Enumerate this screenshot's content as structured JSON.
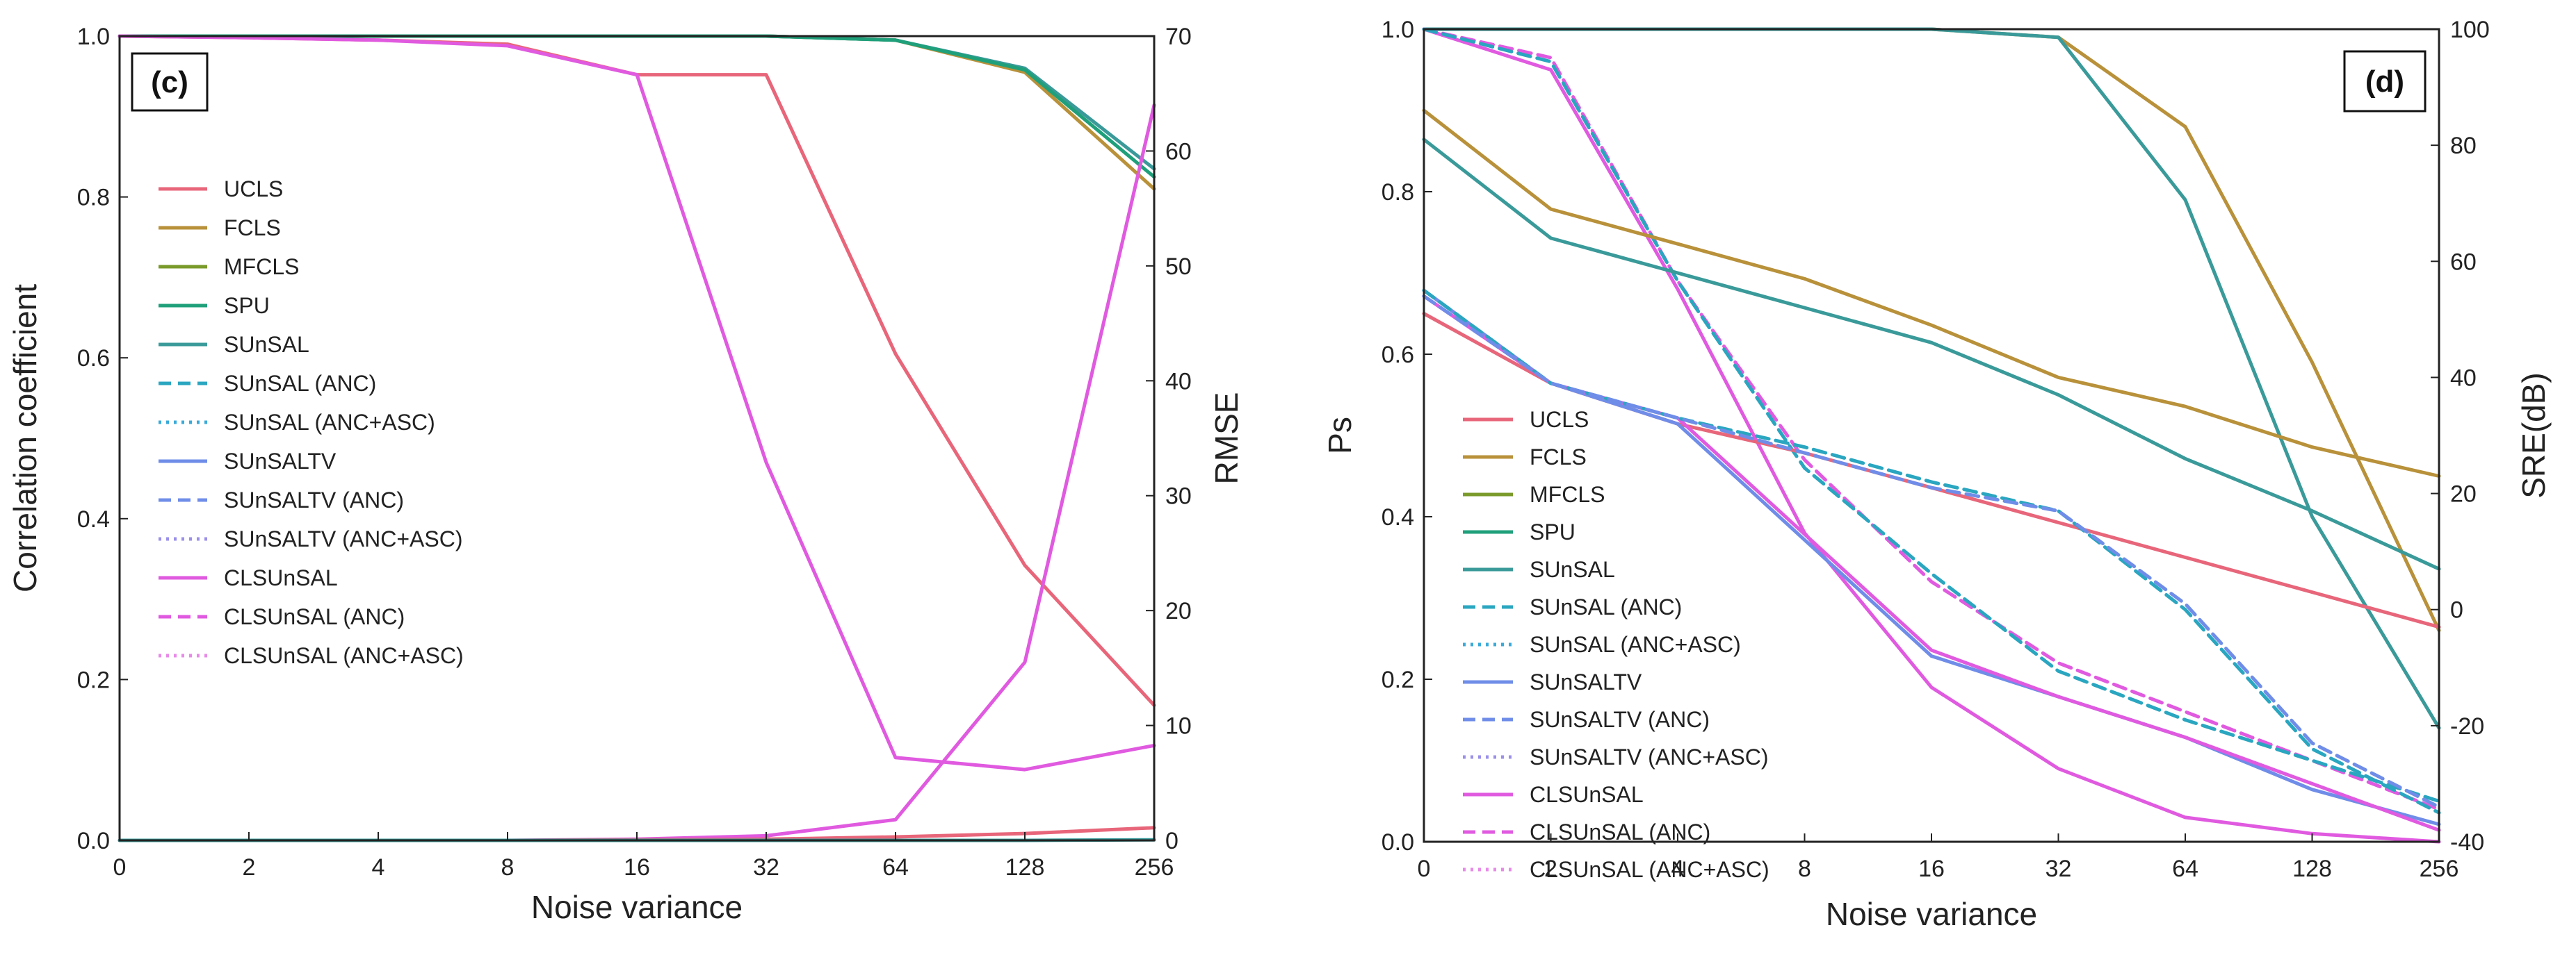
{
  "chart_data": [
    {
      "type": "line",
      "panel_label": "(c)",
      "xlabel": "Noise variance",
      "ylabel": "Correlation coefficient",
      "y2label": "RMSE",
      "x_tick_labels": [
        "0",
        "2",
        "4",
        "8",
        "16",
        "32",
        "64",
        "128",
        "256"
      ],
      "ylim": [
        0,
        1
      ],
      "y_ticks": [
        "0.0",
        "0.2",
        "0.4",
        "0.6",
        "0.8",
        "1.0"
      ],
      "y2lim": [
        0,
        70
      ],
      "y2_ticks": [
        "0",
        "10",
        "20",
        "30",
        "40",
        "50",
        "60",
        "70"
      ],
      "legend_position": "center-left",
      "legend": [
        {
          "name": "UCLS",
          "color": "#e8667a",
          "style": "solid"
        },
        {
          "name": "FCLS",
          "color": "#b8913a",
          "style": "solid"
        },
        {
          "name": "MFCLS",
          "color": "#7a9a2a",
          "style": "solid"
        },
        {
          "name": "SPU",
          "color": "#1fa07a",
          "style": "solid"
        },
        {
          "name": "SUnSAL",
          "color": "#3a9a9a",
          "style": "solid"
        },
        {
          "name": "SUnSAL (ANC)",
          "color": "#2aa6c0",
          "style": "dashed"
        },
        {
          "name": "SUnSAL (ANC+ASC)",
          "color": "#3aaad8",
          "style": "dotted"
        },
        {
          "name": "SUnSALTV",
          "color": "#6f8de8",
          "style": "solid"
        },
        {
          "name": "SUnSALTV (ANC)",
          "color": "#6f8de8",
          "style": "dashed"
        },
        {
          "name": "SUnSALTV (ANC+ASC)",
          "color": "#9a90e8",
          "style": "dotted"
        },
        {
          "name": "CLSUnSAL",
          "color": "#e05ae0",
          "style": "solid"
        },
        {
          "name": "CLSUnSAL (ANC)",
          "color": "#e05ae0",
          "style": "dashed"
        },
        {
          "name": "CLSUnSAL (ANC+ASC)",
          "color": "#e88ae8",
          "style": "dotted"
        }
      ],
      "series": [
        {
          "name": "UCLS corr",
          "axis": "left",
          "color": "#e8667a",
          "style": "solid",
          "values": [
            1.0,
            0.998,
            0.995,
            0.99,
            0.952,
            0.952,
            0.605,
            0.342,
            0.168
          ]
        },
        {
          "name": "FCLS corr",
          "axis": "left",
          "color": "#b8913a",
          "style": "solid",
          "values": [
            1.0,
            1.0,
            1.0,
            1.0,
            1.0,
            1.0,
            0.995,
            0.955,
            0.81
          ]
        },
        {
          "name": "SUnSAL corr",
          "axis": "left",
          "color": "#3a9a9a",
          "style": "solid",
          "values": [
            1.0,
            1.0,
            1.0,
            1.0,
            1.0,
            1.0,
            0.995,
            0.96,
            0.835
          ]
        },
        {
          "name": "SPU corr",
          "axis": "left",
          "color": "#1fa07a",
          "style": "solid",
          "values": [
            1.0,
            1.0,
            1.0,
            1.0,
            1.0,
            1.0,
            0.995,
            0.958,
            0.825
          ]
        },
        {
          "name": "CLSUnSAL corr",
          "axis": "left",
          "color": "#e05ae0",
          "style": "solid",
          "values": [
            1.0,
            0.998,
            0.995,
            0.988,
            0.952,
            0.47,
            0.103,
            0.088,
            0.118
          ]
        },
        {
          "name": "CLSUnSAL RMSE",
          "axis": "right",
          "color": "#e05ae0",
          "style": "solid",
          "values": [
            0,
            0,
            0,
            0,
            0.1,
            0.4,
            1.8,
            15.5,
            64
          ]
        },
        {
          "name": "UCLS RMSE",
          "axis": "right",
          "color": "#e8667a",
          "style": "solid",
          "values": [
            0,
            0,
            0,
            0,
            0.05,
            0.1,
            0.3,
            0.6,
            1.1
          ]
        },
        {
          "name": "SUnSAL RMSE",
          "axis": "right",
          "color": "#3a9a9a",
          "style": "solid",
          "values": [
            0,
            0,
            0,
            0,
            0,
            0,
            0,
            0,
            0.05
          ]
        }
      ]
    },
    {
      "type": "line",
      "panel_label": "(d)",
      "xlabel": "Noise variance",
      "ylabel": "Ps",
      "y2label": "SRE(dB)",
      "x_tick_labels": [
        "0",
        "2",
        "4",
        "8",
        "16",
        "32",
        "64",
        "128",
        "256"
      ],
      "ylim": [
        0,
        1
      ],
      "y_ticks": [
        "0.0",
        "0.2",
        "0.4",
        "0.6",
        "0.8",
        "1.0"
      ],
      "y2lim": [
        -40,
        100
      ],
      "y2_ticks": [
        "-40",
        "-20",
        "0",
        "20",
        "40",
        "60",
        "80",
        "100"
      ],
      "legend_position": "lower-left",
      "legend": [
        {
          "name": "UCLS",
          "color": "#e8667a",
          "style": "solid"
        },
        {
          "name": "FCLS",
          "color": "#b8913a",
          "style": "solid"
        },
        {
          "name": "MFCLS",
          "color": "#7a9a2a",
          "style": "solid"
        },
        {
          "name": "SPU",
          "color": "#1fa07a",
          "style": "solid"
        },
        {
          "name": "SUnSAL",
          "color": "#3a9a9a",
          "style": "solid"
        },
        {
          "name": "SUnSAL (ANC)",
          "color": "#2aa6c0",
          "style": "dashed"
        },
        {
          "name": "SUnSAL (ANC+ASC)",
          "color": "#3aaad8",
          "style": "dotted"
        },
        {
          "name": "SUnSALTV",
          "color": "#6f8de8",
          "style": "solid"
        },
        {
          "name": "SUnSALTV (ANC)",
          "color": "#6f8de8",
          "style": "dashed"
        },
        {
          "name": "SUnSALTV (ANC+ASC)",
          "color": "#9a90e8",
          "style": "dotted"
        },
        {
          "name": "CLSUnSAL",
          "color": "#e05ae0",
          "style": "solid"
        },
        {
          "name": "CLSUnSAL (ANC)",
          "color": "#e05ae0",
          "style": "dashed"
        },
        {
          "name": "CLSUnSAL (ANC+ASC)",
          "color": "#e88ae8",
          "style": "dotted"
        }
      ],
      "series": [
        {
          "name": "FCLS Ps",
          "axis": "left",
          "color": "#b8913a",
          "style": "solid",
          "values": [
            1.0,
            1.0,
            1.0,
            1.0,
            1.0,
            0.99,
            0.88,
            0.59,
            0.26
          ]
        },
        {
          "name": "SUnSAL Ps",
          "axis": "left",
          "color": "#3a9a9a",
          "style": "solid",
          "values": [
            1.0,
            1.0,
            1.0,
            1.0,
            1.0,
            0.99,
            0.79,
            0.4,
            0.14
          ]
        },
        {
          "name": "CLSUnSAL Ps",
          "axis": "left",
          "color": "#e05ae0",
          "style": "solid",
          "values": [
            1.0,
            0.95,
            0.68,
            0.38,
            0.19,
            0.09,
            0.03,
            0.01,
            0.0
          ]
        },
        {
          "name": "CLSUnSAL (ANC) Ps",
          "axis": "left",
          "color": "#e05ae0",
          "style": "dashed",
          "values": [
            1.0,
            0.965,
            0.69,
            0.47,
            0.32,
            0.22,
            0.16,
            0.1,
            0.04
          ]
        },
        {
          "name": "SUnSAL (ANC) Ps",
          "axis": "left",
          "color": "#2aa6c0",
          "style": "dashed",
          "values": [
            1.0,
            0.96,
            0.69,
            0.46,
            0.33,
            0.21,
            0.15,
            0.1,
            0.05
          ]
        },
        {
          "name": "FCLS SRE",
          "axis": "right",
          "color": "#b8913a",
          "style": "solid",
          "values": [
            86,
            69,
            63,
            57,
            49,
            40,
            35,
            28,
            23
          ]
        },
        {
          "name": "SUnSAL SRE",
          "axis": "right",
          "color": "#3a9a9a",
          "style": "solid",
          "values": [
            81,
            64,
            58,
            52,
            46,
            37,
            26,
            17,
            7
          ]
        },
        {
          "name": "UCLS SRE",
          "axis": "right",
          "color": "#e8667a",
          "style": "solid",
          "values": [
            51,
            39,
            32,
            27,
            21,
            15,
            9,
            3,
            -3
          ]
        },
        {
          "name": "SUnSALTV SRE",
          "axis": "right",
          "color": "#6f8de8",
          "style": "solid",
          "values": [
            55,
            39,
            32,
            12,
            -8,
            -15,
            -22,
            -31,
            -37
          ]
        },
        {
          "name": "CLSUnSAL SRE",
          "axis": "right",
          "color": "#e05ae0",
          "style": "solid",
          "values": [
            54,
            39,
            33,
            13,
            -7,
            -15,
            -22,
            -30,
            -38
          ]
        },
        {
          "name": "SUnSAL (ANC) SRE",
          "axis": "right",
          "color": "#2aa6c0",
          "style": "dashed",
          "values": [
            55,
            39,
            33,
            28,
            22,
            17,
            0,
            -24,
            -35
          ]
        },
        {
          "name": "SUnSALTV (ANC) SRE",
          "axis": "right",
          "color": "#6f8de8",
          "style": "dashed",
          "values": [
            54,
            39,
            33,
            27,
            21,
            17,
            1,
            -23,
            -34
          ]
        }
      ]
    }
  ]
}
